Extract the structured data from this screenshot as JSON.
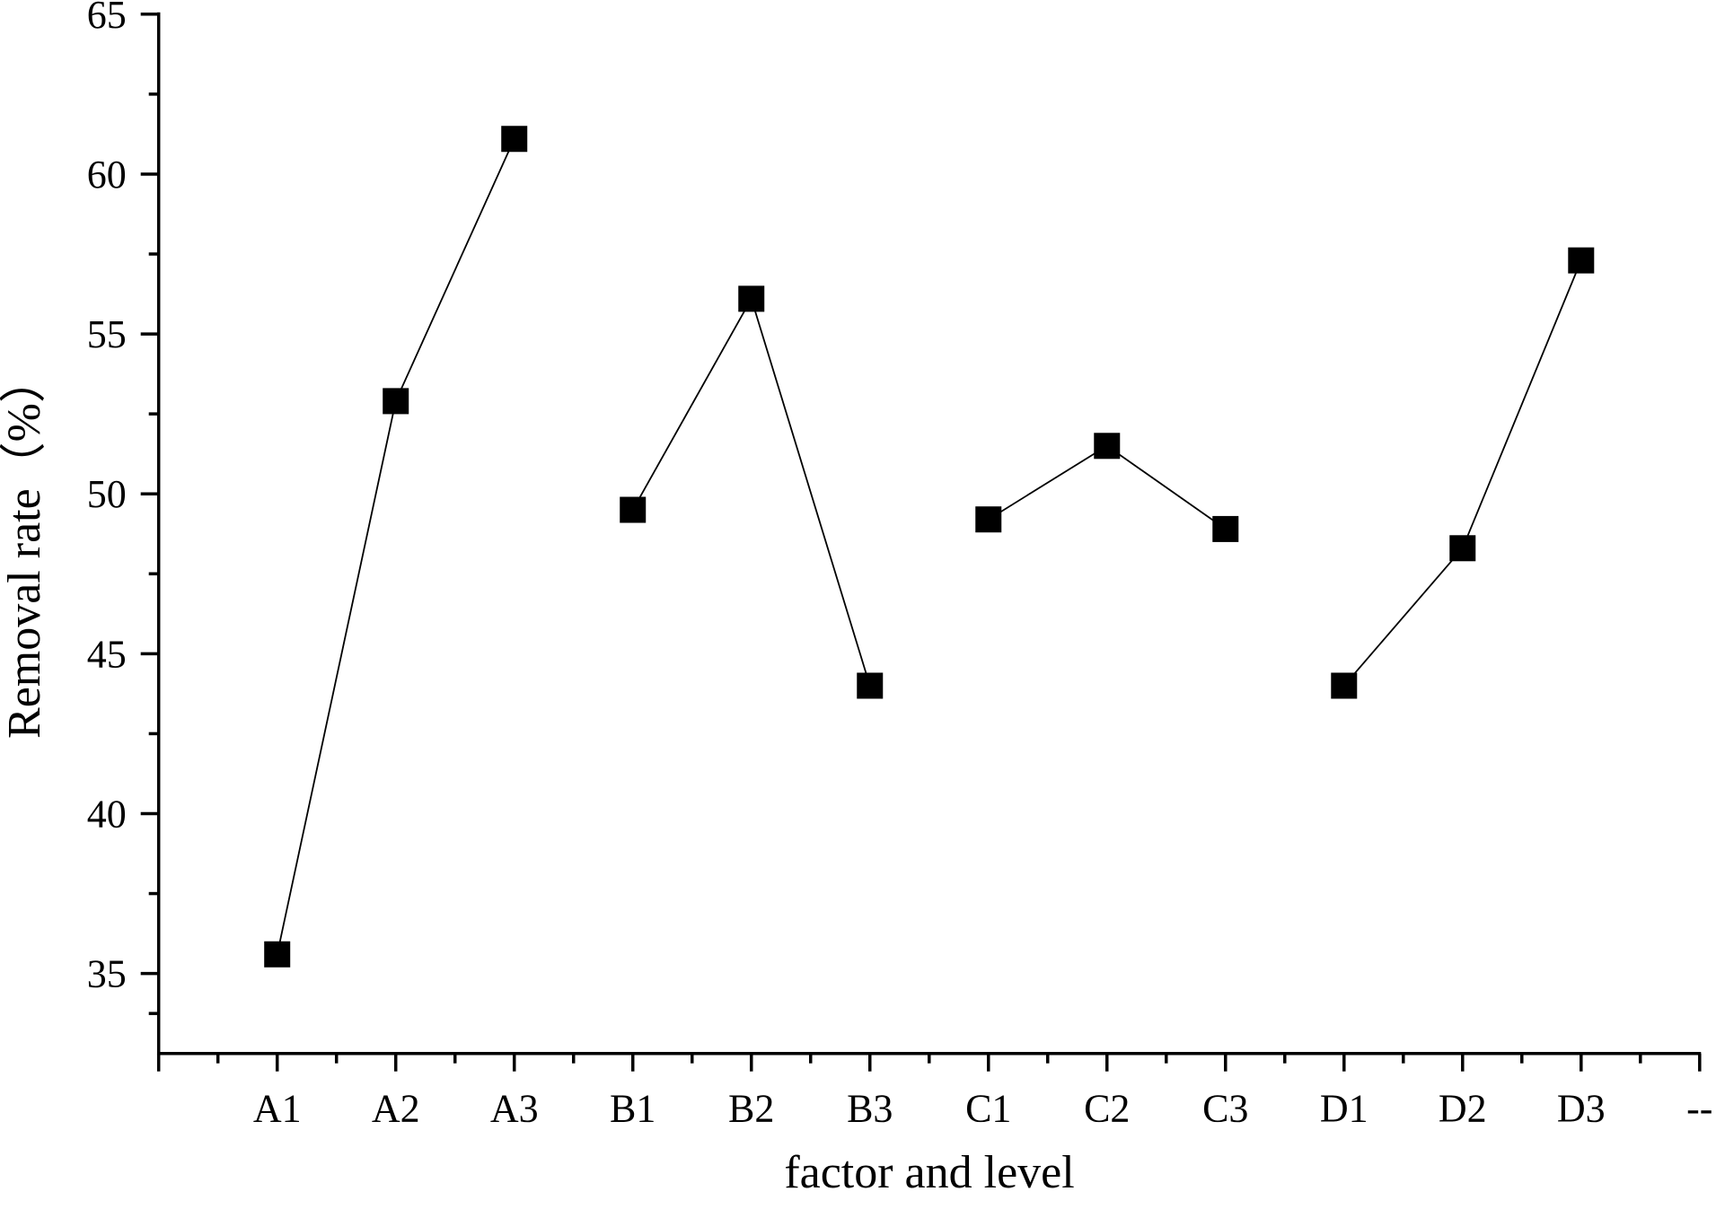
{
  "chart_data": {
    "type": "line",
    "xlabel": "factor  and level",
    "ylabel": "Removal rate（%）",
    "categories": [
      "A1",
      "A2",
      "A3",
      "B1",
      "B2",
      "B3",
      "C1",
      "C2",
      "C3",
      "D1",
      "D2",
      "D3",
      "--"
    ],
    "series": [
      {
        "color": "#000000",
        "values": [
          35.6,
          52.9,
          61.1,
          null,
          null,
          null,
          null,
          null,
          null,
          null,
          null,
          null,
          null
        ]
      },
      {
        "color": "#000000",
        "values": [
          null,
          null,
          null,
          49.5,
          56.1,
          44.0,
          null,
          null,
          null,
          null,
          null,
          null,
          null
        ]
      },
      {
        "color": "#000000",
        "values": [
          null,
          null,
          null,
          null,
          null,
          null,
          49.2,
          51.5,
          48.9,
          null,
          null,
          null,
          null
        ]
      },
      {
        "color": "#000000",
        "values": [
          null,
          null,
          null,
          null,
          null,
          null,
          null,
          null,
          null,
          44.0,
          48.3,
          57.3,
          null
        ]
      }
    ],
    "ylim": [
      32.5,
      65
    ],
    "yticks": [
      35,
      40,
      45,
      50,
      55,
      60,
      65
    ],
    "marker": "square"
  }
}
